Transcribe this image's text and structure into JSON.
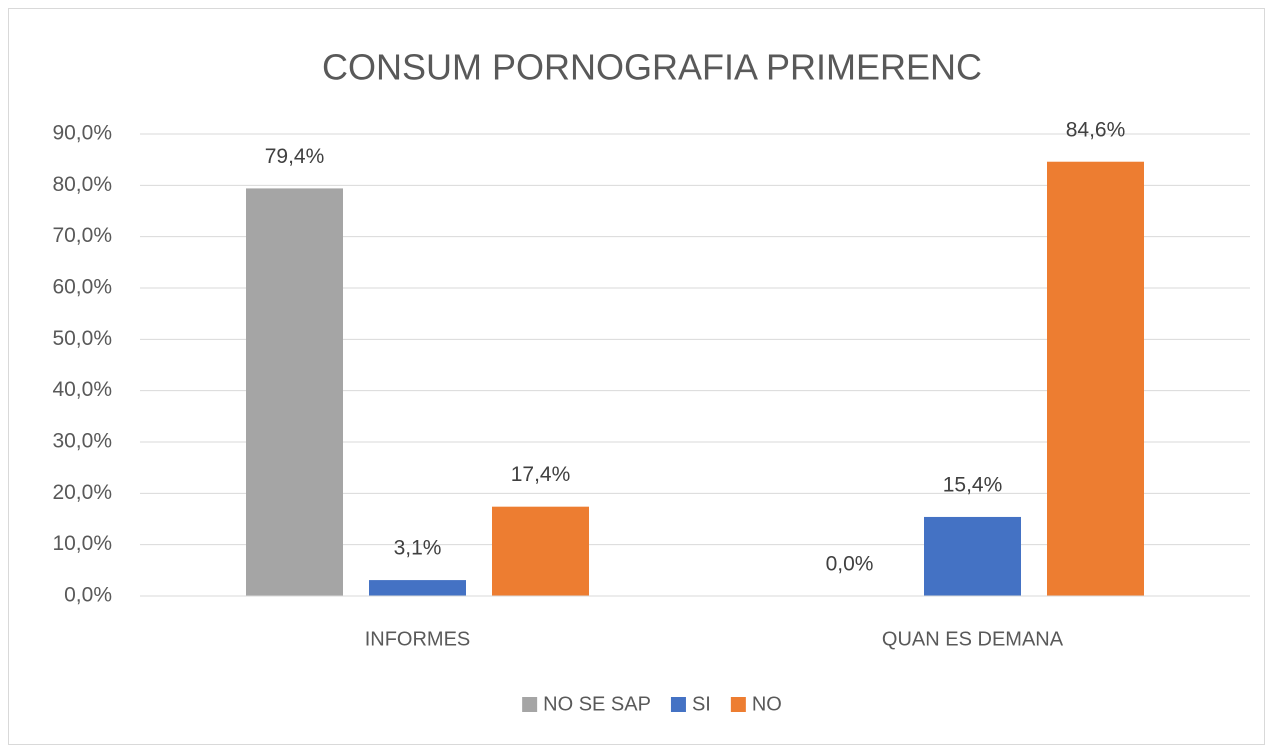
{
  "chart_data": {
    "type": "bar",
    "title": "CONSUM PORNOGRAFIA PRIMERENC",
    "categories": [
      "INFORMES",
      "QUAN ES DEMANA"
    ],
    "series": [
      {
        "name": "NO SE SAP",
        "color": "#a5a5a5",
        "values": [
          79.4,
          0.0
        ],
        "value_labels": [
          "79,4%",
          "0,0%"
        ]
      },
      {
        "name": "SI",
        "color": "#4472c4",
        "values": [
          3.1,
          15.4
        ],
        "value_labels": [
          "3,1%",
          "15,4%"
        ]
      },
      {
        "name": "NO",
        "color": "#ed7d31",
        "values": [
          17.4,
          84.6
        ],
        "value_labels": [
          "17,4%",
          "84,6%"
        ]
      }
    ],
    "ylim": [
      0,
      90
    ],
    "yticks": [
      {
        "value": 0,
        "label": "0,0%"
      },
      {
        "value": 10,
        "label": "10,0%"
      },
      {
        "value": 20,
        "label": "20,0%"
      },
      {
        "value": 30,
        "label": "30,0%"
      },
      {
        "value": 40,
        "label": "40,0%"
      },
      {
        "value": 50,
        "label": "50,0%"
      },
      {
        "value": 60,
        "label": "60,0%"
      },
      {
        "value": 70,
        "label": "70,0%"
      },
      {
        "value": 80,
        "label": "80,0%"
      },
      {
        "value": 90,
        "label": "90,0%"
      }
    ],
    "grid": true,
    "legend": "bottom"
  }
}
